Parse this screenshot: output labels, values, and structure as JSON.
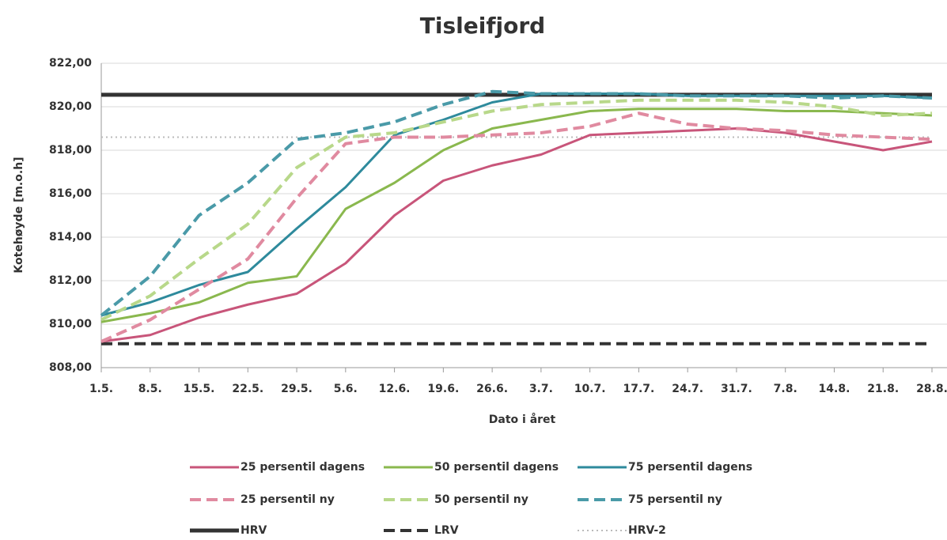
{
  "chart_data": {
    "type": "line",
    "title": "Tisleifjord",
    "x_label": "Dato i året",
    "y_label": "Kotehøyde [m.o.h]",
    "categories": [
      "1.5.",
      "8.5.",
      "15.5.",
      "22.5.",
      "29.5.",
      "5.6.",
      "12.6.",
      "19.6.",
      "26.6.",
      "3.7.",
      "10.7.",
      "17.7.",
      "24.7.",
      "31.7.",
      "7.8.",
      "14.8.",
      "21.8.",
      "28.8."
    ],
    "ylim": [
      808,
      822
    ],
    "yticks": [
      {
        "value": 808,
        "label": "808,00"
      },
      {
        "value": 810,
        "label": "810,00"
      },
      {
        "value": 812,
        "label": "812,00"
      },
      {
        "value": 814,
        "label": "814,00"
      },
      {
        "value": 816,
        "label": "816,00"
      },
      {
        "value": 818,
        "label": "818,00"
      },
      {
        "value": 820,
        "label": "820,00"
      },
      {
        "value": 822,
        "label": "822,00"
      }
    ],
    "grid": true,
    "series": [
      {
        "name": "25 persentil dagens",
        "color": "#c8557a",
        "dash": "solid",
        "values": [
          809.2,
          809.5,
          810.3,
          810.9,
          811.4,
          812.8,
          815.0,
          816.6,
          817.3,
          817.8,
          818.7,
          818.8,
          818.9,
          819.0,
          818.8,
          818.4,
          818.0,
          818.4
        ]
      },
      {
        "name": "50 persentil dagens",
        "color": "#8ab84e",
        "dash": "solid",
        "values": [
          810.1,
          810.5,
          811.0,
          811.9,
          812.2,
          815.3,
          816.5,
          818.0,
          819.0,
          819.4,
          819.8,
          819.9,
          819.9,
          819.9,
          819.8,
          819.8,
          819.7,
          819.6
        ]
      },
      {
        "name": "75 persentil dagens",
        "color": "#2e8a9c",
        "dash": "solid",
        "values": [
          810.4,
          811.0,
          811.8,
          812.4,
          814.4,
          816.3,
          818.7,
          819.4,
          820.2,
          820.6,
          820.6,
          820.6,
          820.5,
          820.5,
          820.5,
          820.5,
          820.5,
          820.4
        ]
      },
      {
        "name": "25 persentil ny",
        "color": "#e08aa0",
        "dash": "dashed",
        "values": [
          809.2,
          810.2,
          811.6,
          813.0,
          815.8,
          818.3,
          818.6,
          818.6,
          818.7,
          818.8,
          819.1,
          819.7,
          819.2,
          819.0,
          818.9,
          818.7,
          818.6,
          818.5
        ]
      },
      {
        "name": "50 persentil ny",
        "color": "#b8d88a",
        "dash": "dashed",
        "values": [
          810.2,
          811.3,
          813.0,
          814.6,
          817.2,
          818.6,
          818.8,
          819.3,
          819.8,
          820.1,
          820.2,
          820.3,
          820.3,
          820.3,
          820.2,
          820.0,
          819.6,
          819.7
        ]
      },
      {
        "name": "75 persentil ny",
        "color": "#4a9aa8",
        "dash": "dashed",
        "values": [
          810.4,
          812.2,
          815.0,
          816.5,
          818.5,
          818.8,
          819.3,
          820.1,
          820.7,
          820.6,
          820.6,
          820.6,
          820.5,
          820.5,
          820.5,
          820.4,
          820.5,
          820.4
        ]
      },
      {
        "name": "HRV",
        "color": "#333333",
        "dash": "solid",
        "values": [
          820.55,
          820.55,
          820.55,
          820.55,
          820.55,
          820.55,
          820.55,
          820.55,
          820.55,
          820.55,
          820.55,
          820.55,
          820.55,
          820.55,
          820.55,
          820.55,
          820.55,
          820.55
        ]
      },
      {
        "name": "LRV",
        "color": "#333333",
        "dash": "dashed",
        "values": [
          809.1,
          809.1,
          809.1,
          809.1,
          809.1,
          809.1,
          809.1,
          809.1,
          809.1,
          809.1,
          809.1,
          809.1,
          809.1,
          809.1,
          809.1,
          809.1,
          809.1,
          809.1
        ]
      },
      {
        "name": "HRV-2",
        "color": "#bbbbbb",
        "dash": "dotted",
        "values": [
          818.6,
          818.6,
          818.6,
          818.6,
          818.6,
          818.6,
          818.6,
          818.6,
          818.6,
          818.6,
          818.6,
          818.6,
          818.6,
          818.6,
          818.6,
          818.6,
          818.6,
          818.6
        ]
      }
    ]
  }
}
